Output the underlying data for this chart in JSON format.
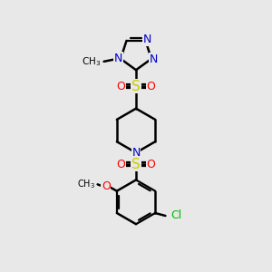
{
  "background_color": "#e8e8e8",
  "bond_color": "#000000",
  "nitrogen_color": "#0000cc",
  "oxygen_color": "#ff0000",
  "sulfur_color": "#cccc00",
  "chlorine_color": "#00bb00",
  "line_width": 1.8,
  "double_lw": 1.6,
  "figsize": [
    3.0,
    3.0
  ],
  "dpi": 100,
  "xlim": [
    0,
    10
  ],
  "ylim": [
    0,
    10
  ]
}
